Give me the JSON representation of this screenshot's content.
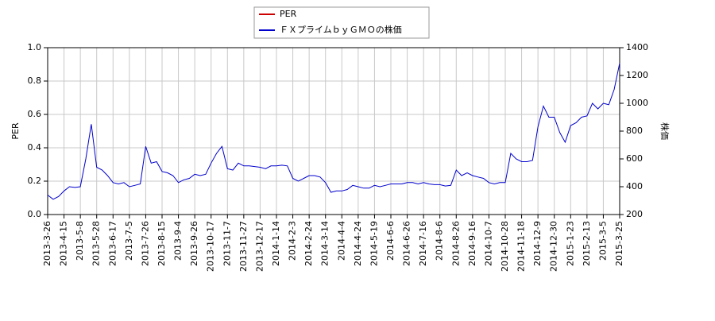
{
  "chart_data": {
    "type": "line",
    "y_label": "PER",
    "y2_label": "株価",
    "categories": [
      "2013-3-26",
      null,
      null,
      "2013-4-15",
      null,
      null,
      "2013-5-8",
      null,
      null,
      "2013-5-28",
      null,
      null,
      "2013-6-17",
      null,
      null,
      "2013-7-5",
      null,
      null,
      "2013-7-26",
      null,
      null,
      "2013-8-15",
      null,
      null,
      "2013-9-4",
      null,
      null,
      "2013-9-26",
      null,
      null,
      "2013-10-17",
      null,
      null,
      "2013-11-7",
      null,
      null,
      "2013-11-27",
      null,
      null,
      "2013-12-17",
      null,
      null,
      "2014-1-14",
      null,
      null,
      "2014-2-3",
      null,
      null,
      "2014-2-24",
      null,
      null,
      "2014-3-14",
      null,
      null,
      "2014-4-4",
      null,
      null,
      "2014-4-24",
      null,
      null,
      "2014-5-19",
      null,
      null,
      "2014-6-6",
      null,
      null,
      "2014-6-26",
      null,
      null,
      "2014-7-16",
      null,
      null,
      "2014-8-6",
      null,
      null,
      "2014-8-26",
      null,
      null,
      "2014-9-16",
      null,
      null,
      "2014-10-7",
      null,
      null,
      "2014-10-28",
      null,
      null,
      "2014-11-18",
      null,
      null,
      "2014-12-9",
      null,
      null,
      "2014-12-30",
      null,
      null,
      "2015-1-23",
      null,
      null,
      "2015-2-13",
      null,
      null,
      "2015-3-5",
      null,
      null,
      "2015-3-25"
    ],
    "series": [
      {
        "name": "PER",
        "color": "#cc0000",
        "axis": "y",
        "values": [
          null,
          null,
          null,
          null,
          null,
          null,
          null,
          null,
          null,
          null,
          null,
          null,
          null,
          null,
          null,
          null,
          null,
          null,
          null,
          null,
          null,
          null,
          null,
          null,
          null,
          null,
          null,
          null,
          null,
          null,
          null,
          null,
          null,
          null,
          null,
          null,
          null,
          null,
          null,
          null,
          null,
          null,
          null,
          null,
          null,
          null,
          null,
          null,
          null,
          null,
          null,
          null,
          null,
          null,
          null,
          null,
          null,
          null,
          null,
          null,
          null,
          null,
          null,
          null,
          null,
          null,
          null,
          null,
          null,
          null,
          null,
          null,
          null,
          null,
          null,
          null,
          null,
          null,
          null,
          null,
          null,
          null,
          null,
          null,
          null,
          null,
          null,
          null,
          null,
          null,
          null,
          null,
          null,
          null,
          null,
          null,
          null,
          null,
          null,
          null,
          null,
          null,
          null,
          null,
          null,
          null
        ]
      },
      {
        "name": "ＦＸプライムｂｙＧＭＯの株価",
        "color": "#0000cc",
        "axis": "y2",
        "values": [
          340,
          310,
          330,
          370,
          400,
          395,
          400,
          600,
          850,
          540,
          520,
          480,
          430,
          420,
          430,
          400,
          410,
          420,
          690,
          570,
          580,
          510,
          500,
          480,
          430,
          450,
          460,
          490,
          480,
          490,
          570,
          640,
          690,
          530,
          520,
          570,
          550,
          550,
          545,
          540,
          530,
          550,
          550,
          555,
          550,
          460,
          440,
          460,
          480,
          480,
          470,
          430,
          360,
          370,
          370,
          380,
          410,
          400,
          390,
          390,
          410,
          400,
          410,
          420,
          420,
          420,
          430,
          430,
          420,
          430,
          420,
          415,
          415,
          405,
          410,
          520,
          480,
          500,
          480,
          470,
          460,
          430,
          420,
          430,
          430,
          640,
          600,
          580,
          580,
          590,
          830,
          980,
          900,
          900,
          790,
          720,
          840,
          860,
          900,
          910,
          1000,
          960,
          1000,
          990,
          1100,
          1290
        ]
      }
    ],
    "ylim": [
      0,
      1
    ],
    "yticks": [
      {
        "value": 0,
        "label": "0.0"
      },
      0.2,
      0.4,
      0.6,
      0.8,
      {
        "value": 1,
        "label": "1.0"
      }
    ],
    "y2lim": [
      200,
      1400
    ],
    "y2ticks": [
      200,
      400,
      600,
      800,
      1000,
      1200,
      1400
    ],
    "grid": true,
    "legend": "top"
  }
}
